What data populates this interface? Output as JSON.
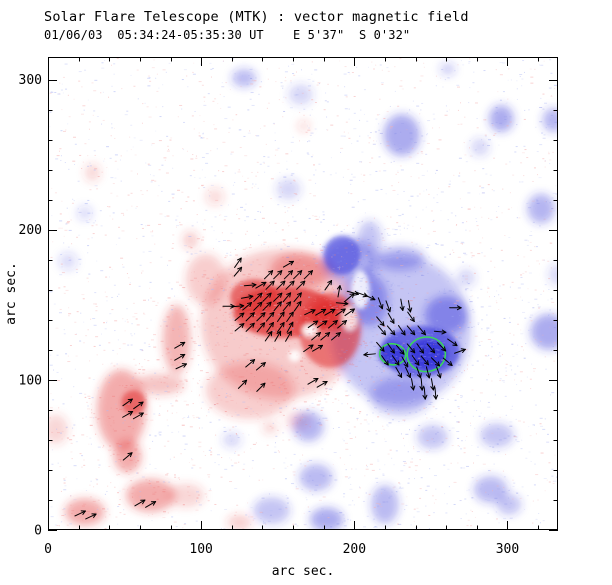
{
  "chart_data": {
    "type": "heatmap",
    "title": "Solar Flare Telescope (MTK) : vector magnetic field",
    "subtitle": "01/06/03  05:34:24-05:35:30 UT    E 5'37\"  S 0'32\"",
    "xlabel": "arc sec.",
    "ylabel": "arc sec.",
    "xlim": [
      0,
      333
    ],
    "ylim": [
      0,
      315
    ],
    "xticks": [
      0,
      100,
      200,
      300
    ],
    "yticks": [
      0,
      100,
      200,
      300
    ],
    "minor_tick_step": 20,
    "grid": false,
    "legend": "none",
    "colors": {
      "positive_polarity": "#e03030",
      "negative_polarity": "#3030d8",
      "neutral_lane": "#ffffff",
      "contour": "#3bd65c",
      "axes": "#000000",
      "background": "#ffffff",
      "speck_positive": "#f5b0b0",
      "speck_negative": "#b0baf4"
    },
    "noise": {
      "uniform_speck_count": 2400,
      "blob_speck_density": 0.14
    },
    "blob_format": [
      "polarity",
      "x",
      "y",
      "rx",
      "ry",
      "intensity"
    ],
    "blobs": [
      [
        "+",
        152,
        137,
        52,
        50,
        0.32
      ],
      [
        "+",
        155,
        145,
        34,
        17,
        0.95
      ],
      [
        "+",
        135,
        155,
        16,
        12,
        0.8
      ],
      [
        "+",
        184,
        133,
        20,
        25,
        0.7
      ],
      [
        "+",
        186,
        143,
        14,
        10,
        0.9
      ],
      [
        "+",
        84,
        127,
        9,
        23,
        0.45
      ],
      [
        "+",
        103,
        167,
        13,
        17,
        0.3
      ],
      [
        "+",
        165,
        173,
        20,
        12,
        0.45
      ],
      [
        "+",
        132,
        93,
        29,
        19,
        0.3
      ],
      [
        "+",
        48,
        80,
        16,
        27,
        0.5
      ],
      [
        "+",
        56,
        85,
        8,
        8,
        0.7
      ],
      [
        "+",
        73,
        97,
        16,
        7,
        0.35
      ],
      [
        "+",
        52,
        49,
        9,
        11,
        0.5
      ],
      [
        "+",
        67,
        23,
        16,
        11,
        0.5
      ],
      [
        "+",
        90,
        23,
        12,
        8,
        0.25
      ],
      [
        "+",
        24,
        12,
        13,
        9,
        0.5
      ],
      [
        "+",
        29,
        238,
        5,
        6,
        0.25
      ],
      [
        "+",
        109,
        222,
        6,
        6,
        0.2
      ],
      [
        "+",
        93,
        193,
        5,
        6,
        0.3
      ],
      [
        "+",
        5,
        67,
        8,
        10,
        0.25
      ],
      [
        "+",
        125,
        5,
        8,
        5,
        0.3
      ],
      [
        "+",
        163,
        73,
        8,
        6,
        0.25
      ],
      [
        "+",
        145,
        68,
        5,
        4,
        0.25
      ],
      [
        "+",
        167,
        269,
        4,
        4,
        0.2
      ],
      [
        "-",
        230,
        133,
        46,
        50,
        0.35
      ],
      [
        "-",
        192,
        183,
        12,
        13,
        0.7
      ],
      [
        "-",
        197,
        179,
        18,
        15,
        0.4
      ],
      [
        "-",
        230,
        181,
        16,
        8,
        0.4
      ],
      [
        "-",
        210,
        193,
        8,
        13,
        0.35
      ],
      [
        "-",
        210,
        153,
        12,
        17,
        0.5
      ],
      [
        "-",
        243,
        119,
        26,
        17,
        0.8
      ],
      [
        "-",
        248,
        117,
        13,
        10,
        1.0
      ],
      [
        "-",
        225,
        117,
        9,
        8,
        0.95
      ],
      [
        "-",
        260,
        143,
        14,
        13,
        0.55
      ],
      [
        "-",
        230,
        89,
        20,
        13,
        0.35
      ],
      [
        "-",
        170,
        69,
        10,
        10,
        0.45
      ],
      [
        "-",
        231,
        263,
        12,
        14,
        0.5
      ],
      [
        "-",
        296,
        274,
        8,
        9,
        0.5
      ],
      [
        "-",
        330,
        273,
        7,
        8,
        0.45
      ],
      [
        "-",
        261,
        307,
        5,
        4,
        0.3
      ],
      [
        "-",
        128,
        301,
        8,
        6,
        0.4
      ],
      [
        "-",
        165,
        290,
        8,
        7,
        0.25
      ],
      [
        "-",
        282,
        255,
        6,
        6,
        0.25
      ],
      [
        "-",
        322,
        214,
        9,
        10,
        0.45
      ],
      [
        "-",
        327,
        132,
        12,
        12,
        0.5
      ],
      [
        "-",
        332,
        170,
        5,
        7,
        0.25
      ],
      [
        "-",
        289,
        27,
        11,
        9,
        0.4
      ],
      [
        "-",
        301,
        17,
        8,
        7,
        0.35
      ],
      [
        "-",
        293,
        63,
        11,
        8,
        0.35
      ],
      [
        "-",
        251,
        62,
        10,
        8,
        0.35
      ],
      [
        "-",
        220,
        17,
        9,
        13,
        0.4
      ],
      [
        "-",
        175,
        35,
        11,
        9,
        0.4
      ],
      [
        "-",
        182,
        7,
        11,
        8,
        0.5
      ],
      [
        "-",
        146,
        13,
        12,
        9,
        0.35
      ],
      [
        "-",
        120,
        60,
        6,
        5,
        0.25
      ],
      [
        "-",
        24,
        211,
        5,
        5,
        0.2
      ],
      [
        "-",
        13,
        179,
        6,
        6,
        0.2
      ],
      [
        "-",
        157,
        227,
        8,
        7,
        0.25
      ],
      [
        "-",
        273,
        168,
        6,
        6,
        0.25
      ],
      [
        "0",
        171,
        133,
        5,
        4,
        0.95
      ],
      [
        "0",
        161,
        116,
        4,
        4,
        0.9
      ],
      [
        "0",
        204,
        160,
        6,
        13,
        0.85
      ],
      [
        "0",
        197,
        141,
        5,
        8,
        0.8
      ]
    ],
    "contour_format": [
      "x",
      "y",
      "rx",
      "ry",
      "rotation_deg"
    ],
    "contours": [
      [
        225,
        117,
        8.5,
        7,
        8
      ],
      [
        247,
        117,
        12.5,
        11.5,
        -6
      ]
    ],
    "vector_format": [
      "x",
      "y",
      "angle_deg"
    ],
    "vector_length_arcsec": 7.5,
    "vectors": [
      [
        144,
        170,
        45
      ],
      [
        150,
        170,
        45
      ],
      [
        157,
        170,
        45
      ],
      [
        163,
        170,
        45
      ],
      [
        170,
        170,
        45
      ],
      [
        124,
        172,
        50
      ],
      [
        132,
        163,
        5
      ],
      [
        139,
        163,
        30
      ],
      [
        145,
        163,
        45
      ],
      [
        152,
        163,
        45
      ],
      [
        158,
        163,
        45
      ],
      [
        165,
        163,
        45
      ],
      [
        130,
        155,
        10
      ],
      [
        137,
        155,
        45
      ],
      [
        143,
        155,
        45
      ],
      [
        150,
        155,
        45
      ],
      [
        156,
        155,
        50
      ],
      [
        163,
        155,
        50
      ],
      [
        118,
        149,
        0
      ],
      [
        124,
        149,
        5
      ],
      [
        130,
        149,
        40
      ],
      [
        137,
        149,
        45
      ],
      [
        143,
        149,
        45
      ],
      [
        150,
        149,
        50
      ],
      [
        156,
        149,
        50
      ],
      [
        163,
        149,
        55
      ],
      [
        125,
        142,
        40
      ],
      [
        132,
        142,
        45
      ],
      [
        139,
        142,
        45
      ],
      [
        145,
        142,
        50
      ],
      [
        152,
        142,
        55
      ],
      [
        158,
        142,
        55
      ],
      [
        125,
        135,
        40
      ],
      [
        132,
        135,
        45
      ],
      [
        139,
        135,
        50
      ],
      [
        145,
        135,
        55
      ],
      [
        152,
        135,
        55
      ],
      [
        158,
        135,
        60
      ],
      [
        144,
        129,
        55
      ],
      [
        150,
        129,
        60
      ],
      [
        157,
        129,
        60
      ],
      [
        170,
        121,
        35
      ],
      [
        176,
        121,
        30
      ],
      [
        171,
        145,
        25
      ],
      [
        178,
        145,
        30
      ],
      [
        184,
        145,
        30
      ],
      [
        191,
        145,
        35
      ],
      [
        197,
        145,
        35
      ],
      [
        173,
        137,
        35
      ],
      [
        179,
        137,
        35
      ],
      [
        186,
        137,
        40
      ],
      [
        192,
        137,
        40
      ],
      [
        175,
        129,
        40
      ],
      [
        181,
        129,
        40
      ],
      [
        188,
        129,
        40
      ],
      [
        173,
        99,
        30
      ],
      [
        179,
        97,
        30
      ],
      [
        183,
        163,
        55
      ],
      [
        190,
        159,
        80
      ],
      [
        197,
        155,
        40
      ],
      [
        192,
        151,
        -5
      ],
      [
        199,
        158,
        -15
      ],
      [
        205,
        157,
        -20
      ],
      [
        210,
        155,
        -25
      ],
      [
        86,
        123,
        30
      ],
      [
        86,
        115,
        30
      ],
      [
        87,
        109,
        25
      ],
      [
        52,
        85,
        35
      ],
      [
        59,
        83,
        35
      ],
      [
        52,
        77,
        30
      ],
      [
        59,
        76,
        30
      ],
      [
        52,
        49,
        40
      ],
      [
        60,
        18,
        30
      ],
      [
        67,
        17,
        30
      ],
      [
        21,
        11,
        25
      ],
      [
        28,
        9,
        25
      ],
      [
        132,
        111,
        40
      ],
      [
        139,
        109,
        40
      ],
      [
        127,
        97,
        45
      ],
      [
        139,
        95,
        45
      ],
      [
        124,
        178,
        55
      ],
      [
        157,
        177,
        30
      ],
      [
        217,
        151,
        -70
      ],
      [
        222,
        149,
        -70
      ],
      [
        231,
        150,
        -80
      ],
      [
        236,
        149,
        -80
      ],
      [
        224,
        141,
        -60
      ],
      [
        237,
        142,
        -55
      ],
      [
        217,
        139,
        -50
      ],
      [
        218,
        133,
        -50
      ],
      [
        224,
        133,
        -50
      ],
      [
        231,
        133,
        -55
      ],
      [
        237,
        133,
        -50
      ],
      [
        244,
        133,
        -50
      ],
      [
        256,
        132,
        -5
      ],
      [
        264,
        125,
        -35
      ],
      [
        266,
        148,
        0
      ],
      [
        217,
        122,
        -50
      ],
      [
        224,
        121,
        -55
      ],
      [
        230,
        120,
        -50
      ],
      [
        237,
        121,
        -50
      ],
      [
        243,
        121,
        -55
      ],
      [
        250,
        121,
        -50
      ],
      [
        257,
        122,
        -45
      ],
      [
        210,
        117,
        185
      ],
      [
        220,
        113,
        -55
      ],
      [
        227,
        113,
        -55
      ],
      [
        233,
        112,
        -60
      ],
      [
        240,
        113,
        -55
      ],
      [
        246,
        113,
        -50
      ],
      [
        253,
        112,
        -45
      ],
      [
        261,
        112,
        -40
      ],
      [
        269,
        119,
        20
      ],
      [
        229,
        105,
        -60
      ],
      [
        235,
        105,
        -65
      ],
      [
        242,
        105,
        -70
      ],
      [
        248,
        105,
        -75
      ],
      [
        255,
        105,
        -70
      ],
      [
        238,
        97,
        -80
      ],
      [
        244,
        97,
        -85
      ],
      [
        251,
        97,
        -80
      ],
      [
        246,
        91,
        -85
      ],
      [
        253,
        91,
        -85
      ]
    ]
  }
}
